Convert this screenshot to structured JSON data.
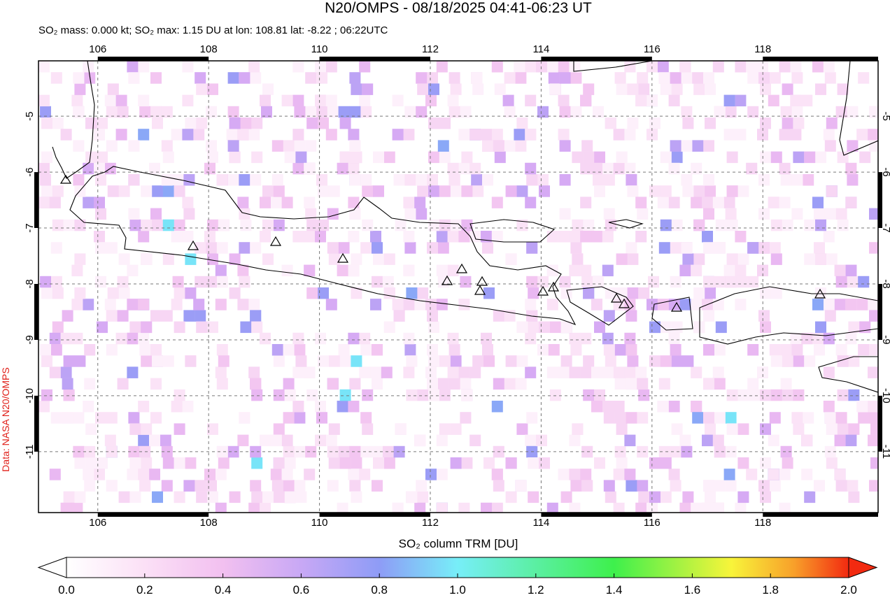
{
  "title": "N20/OMPS - 08/18/2025 04:41-06:23 UT",
  "subtitle": "SO₂ mass: 0.000 kt; SO₂ max: 1.15 DU at lon: 108.81 lat: -8.22 ; 06:22UTC",
  "credit": "Data: NASA N20/OMPS",
  "map": {
    "xlim": [
      104.93,
      120.08
    ],
    "ylim": [
      -12.09,
      -4.01
    ],
    "xticks": [
      106,
      108,
      110,
      112,
      114,
      116,
      118
    ],
    "yticks": [
      -5,
      -6,
      -7,
      -8,
      -9,
      -10,
      -11
    ],
    "grid": true
  },
  "colorbar": {
    "label": "SO₂ column TRM [DU]",
    "lim": [
      0,
      2
    ],
    "ticks": [
      {
        "value": 0,
        "label": "0.0"
      },
      0.2,
      0.4,
      0.6,
      0.8,
      {
        "value": 1,
        "label": "1.0"
      },
      1.2,
      1.4,
      1.6,
      1.8,
      {
        "value": 2,
        "label": "2.0"
      }
    ]
  }
}
